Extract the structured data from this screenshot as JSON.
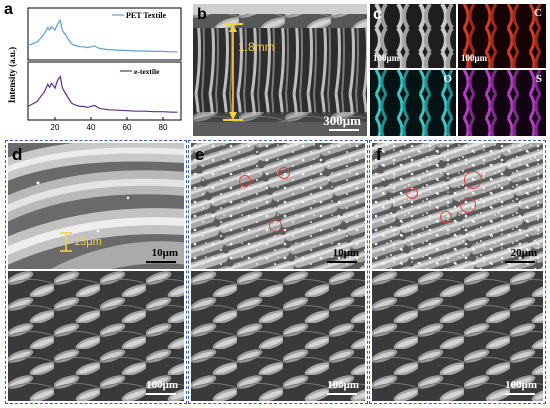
{
  "panel_a": {
    "label": "a",
    "chart_data": [
      {
        "type": "line",
        "legend": "PET Textile",
        "color": "#5e9fd6",
        "ylabel": "Intensity (a.u.)",
        "xlim": [
          5,
          90
        ],
        "x": [
          5,
          8,
          10,
          12,
          14,
          15,
          16,
          17,
          18,
          19,
          20,
          21,
          22,
          23,
          24,
          25,
          26,
          27,
          28,
          29,
          30,
          32,
          34,
          36,
          38,
          40,
          42,
          44,
          46,
          50,
          55,
          60,
          65,
          70,
          75,
          80,
          85,
          88
        ],
        "y": [
          0.25,
          0.3,
          0.33,
          0.42,
          0.52,
          0.6,
          0.68,
          0.62,
          0.7,
          0.66,
          0.62,
          0.72,
          0.8,
          0.85,
          0.62,
          0.55,
          0.5,
          0.42,
          0.36,
          0.3,
          0.27,
          0.24,
          0.22,
          0.22,
          0.2,
          0.22,
          0.24,
          0.19,
          0.17,
          0.15,
          0.14,
          0.13,
          0.12,
          0.12,
          0.11,
          0.11,
          0.1,
          0.1
        ]
      },
      {
        "type": "line",
        "legend": "e-textile",
        "color": "#5b2d8e",
        "xlabel": "",
        "xticks": [
          0,
          20,
          40,
          60,
          80
        ],
        "xlim": [
          5,
          90
        ],
        "x": [
          5,
          8,
          10,
          12,
          14,
          15,
          16,
          17,
          18,
          19,
          20,
          21,
          22,
          23,
          24,
          25,
          26,
          27,
          28,
          29,
          30,
          32,
          34,
          36,
          38,
          40,
          42,
          44,
          46,
          50,
          55,
          60,
          65,
          70,
          75,
          80,
          85,
          88
        ],
        "y": [
          0.2,
          0.26,
          0.3,
          0.4,
          0.5,
          0.58,
          0.66,
          0.6,
          0.68,
          0.64,
          0.58,
          0.7,
          0.78,
          0.82,
          0.6,
          0.52,
          0.46,
          0.4,
          0.34,
          0.28,
          0.25,
          0.22,
          0.2,
          0.2,
          0.18,
          0.2,
          0.22,
          0.17,
          0.15,
          0.13,
          0.12,
          0.11,
          0.1,
          0.1,
          0.09,
          0.09,
          0.08,
          0.08
        ]
      }
    ]
  },
  "panel_b": {
    "label": "b",
    "thickness": "1.8mm",
    "scale": "300μm"
  },
  "panel_c": {
    "label": "c",
    "maps": [
      {
        "element": "",
        "scale": "100μm",
        "color": "#cccccc"
      },
      {
        "element": "C",
        "scale": "100μm",
        "color": "#d23a26"
      },
      {
        "element": "O",
        "scale": "",
        "color": "#3fc4c4"
      },
      {
        "element": "S",
        "scale": "",
        "color": "#b43cc4"
      }
    ]
  },
  "panel_d": {
    "label": "d",
    "fiber_diameter": "13μm",
    "top_scale": "10μm",
    "bottom_scale": "100μm"
  },
  "panel_e": {
    "label": "e",
    "top_scale": "10μm",
    "bottom_scale": "100μm"
  },
  "panel_f": {
    "label": "f",
    "top_scale": "20μm",
    "bottom_scale": "100μm"
  }
}
